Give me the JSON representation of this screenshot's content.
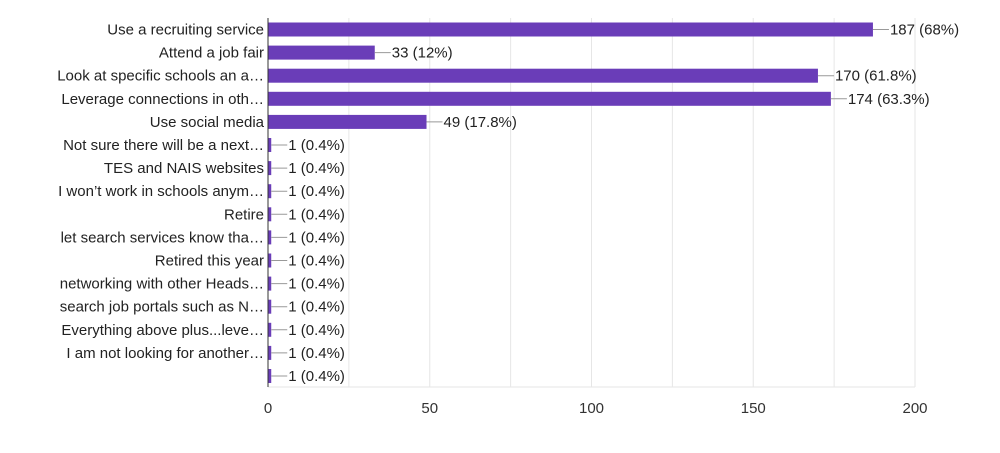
{
  "chart_data": {
    "type": "bar",
    "orientation": "horizontal",
    "categories": [
      "Use a recruiting service",
      "Attend a job fair",
      "Look at specific schools an a…",
      "Leverage connections in oth…",
      "Use social media",
      "Not sure there will be a next…",
      "TES and NAIS websites",
      "I won’t work in schools anym…",
      "Retire",
      "let search services know tha…",
      "Retired this year",
      "networking with other Heads…",
      "search job portals such as N…",
      "Everything above plus...leve…",
      "I am not looking for another…",
      ""
    ],
    "values": [
      187,
      33,
      170,
      174,
      49,
      1,
      1,
      1,
      1,
      1,
      1,
      1,
      1,
      1,
      1,
      1
    ],
    "value_labels": [
      "187 (68%)",
      "33 (12%)",
      "170 (61.8%)",
      "174 (63.3%)",
      "49 (17.8%)",
      "1 (0.4%)",
      "1 (0.4%)",
      "1 (0.4%)",
      "1 (0.4%)",
      "1 (0.4%)",
      "1 (0.4%)",
      "1 (0.4%)",
      "1 (0.4%)",
      "1 (0.4%)",
      "1 (0.4%)",
      "1 (0.4%)"
    ],
    "xlim": [
      0,
      200
    ],
    "xticks": [
      "0",
      "50",
      "100",
      "150",
      "200"
    ],
    "grid": true,
    "bar_color": "#6a3db8",
    "title": "",
    "xlabel": "",
    "ylabel": ""
  }
}
